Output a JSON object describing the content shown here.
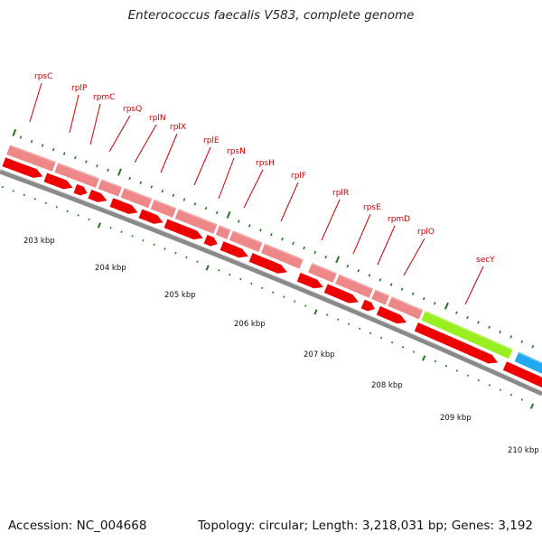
{
  "title": "Enterococcus faecalis V583, complete genome",
  "footer": {
    "accession_label": "Accession:",
    "accession": "NC_004668",
    "topology_label": "Topology:",
    "topology": "circular",
    "length_label": "Length:",
    "length": "3,218,031 bp",
    "genes_label": "Genes:",
    "genes": "3,192"
  },
  "colors": {
    "backbone": "#8a8a8a",
    "forward_gene": "#ee8888",
    "reverse_gene": "#ee0000",
    "secY": "#99ee22",
    "next_gene": "#22a8ee",
    "label": "#cc0000",
    "tick": "#227722",
    "kbp_label": "#111111"
  },
  "scale_labels": [
    "203 kbp",
    "204 kbp",
    "205 kbp",
    "206 kbp",
    "207 kbp",
    "208 kbp",
    "209 kbp",
    "210 kbp"
  ],
  "genes": [
    {
      "name": "rpsC",
      "strand": "forward"
    },
    {
      "name": "rplP",
      "strand": "forward"
    },
    {
      "name": "rpmC",
      "strand": "forward"
    },
    {
      "name": "rpsQ",
      "strand": "forward"
    },
    {
      "name": "rplN",
      "strand": "forward"
    },
    {
      "name": "rplX",
      "strand": "forward"
    },
    {
      "name": "rplE",
      "strand": "forward"
    },
    {
      "name": "rpsN",
      "strand": "forward"
    },
    {
      "name": "rpsH",
      "strand": "forward"
    },
    {
      "name": "rplF",
      "strand": "forward"
    },
    {
      "name": "rplR",
      "strand": "forward"
    },
    {
      "name": "rpsE",
      "strand": "forward"
    },
    {
      "name": "rpmD",
      "strand": "forward"
    },
    {
      "name": "rplO",
      "strand": "forward"
    },
    {
      "name": "secY",
      "strand": "forward"
    }
  ]
}
